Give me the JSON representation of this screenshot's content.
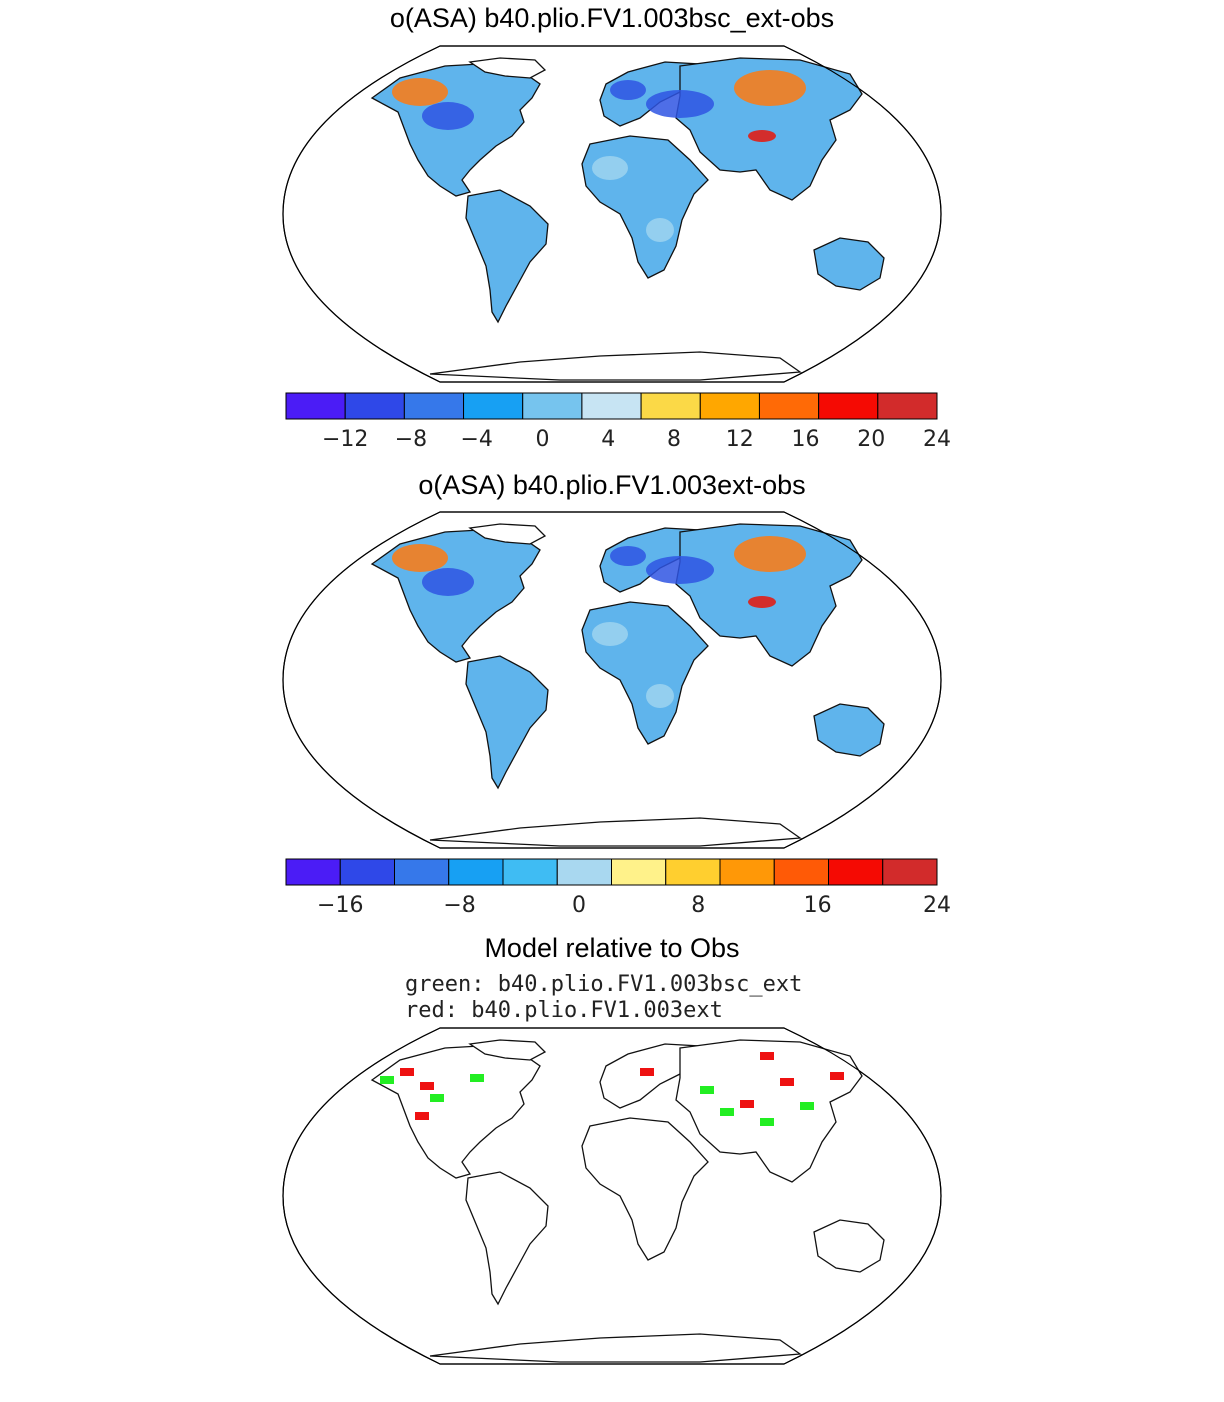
{
  "panels": [
    {
      "title": "o(ASA) b40.plio.FV1.003bsc_ext-obs",
      "colorbar": {
        "colors": [
          "#4b1cf6",
          "#2f48e8",
          "#3678ea",
          "#17a0f3",
          "#76c4ee",
          "#c7e4f3",
          "#fbd947",
          "#ffa700",
          "#ff6a06",
          "#f50a03",
          "#d22b2b"
        ],
        "labels": [
          "−12",
          "−8",
          "−4",
          "0",
          "4",
          "8",
          "12",
          "16",
          "20",
          "24"
        ]
      }
    },
    {
      "title": "o(ASA) b40.plio.FV1.003ext-obs",
      "colorbar": {
        "colors": [
          "#4b1cf6",
          "#2f48e8",
          "#3678ea",
          "#17a0f3",
          "#3fbcf3",
          "#a9d8f0",
          "#fff28a",
          "#ffcf2f",
          "#ff9807",
          "#ff5a06",
          "#f50a03",
          "#d22b2b"
        ],
        "labels": [
          "−16",
          "−8",
          "0",
          "8",
          "16",
          "24"
        ]
      }
    },
    {
      "title": "Model relative to Obs",
      "legend": [
        {
          "text": "green: b40.plio.FV1.003bsc_ext",
          "color": "#22ee22"
        },
        {
          "text": "red: b40.plio.FV1.003ext",
          "color": "#ee1111"
        }
      ]
    }
  ],
  "map_style": {
    "land_fill_1": "#5fb4ec",
    "land_fill_2": "#5fb4ec",
    "land_fill_3": "#ffffff",
    "coast": "#111111",
    "hot": "#ff7a10",
    "cold": "#2f55e3"
  }
}
